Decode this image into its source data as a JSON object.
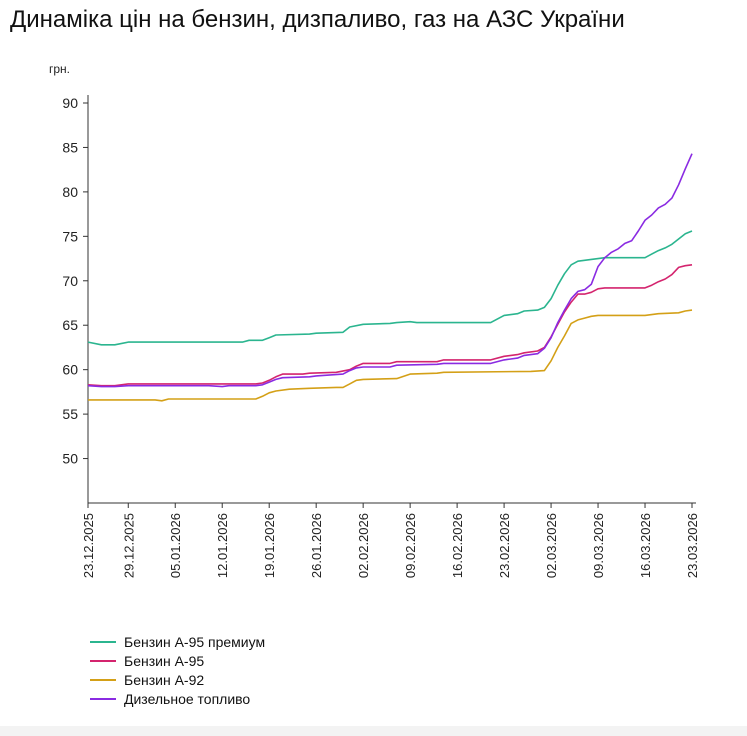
{
  "title": "Динаміка цін на бензин, дизпаливо, газ на АЗС України",
  "chart_data": {
    "type": "line",
    "title": "Динаміка цін на бензин, дизпаливо, газ на АЗС України",
    "ylabel": "грн.",
    "xlabel": "",
    "ylim": [
      45,
      90
    ],
    "y_ticks": [
      50,
      55,
      60,
      65,
      70,
      75,
      80,
      85,
      90
    ],
    "grid": false,
    "legend_position": "bottom-left",
    "x_ticks": [
      "23.12.2025",
      "29.12.2025",
      "05.01.2026",
      "12.01.2026",
      "19.01.2026",
      "26.01.2026",
      "02.02.2026",
      "09.02.2026",
      "16.02.2026",
      "23.02.2026",
      "02.03.2026",
      "09.03.2026",
      "16.03.2026",
      "23.03.2026"
    ],
    "x_start": "2025-12-23",
    "x_end": "2026-03-23",
    "series": [
      {
        "name": "Бензин А-95 премиум",
        "color": "#2bb58f",
        "points": [
          [
            "2025-12-23",
            63.1
          ],
          [
            "2025-12-25",
            62.8
          ],
          [
            "2025-12-27",
            62.8
          ],
          [
            "2025-12-29",
            63.1
          ],
          [
            "2026-01-12",
            63.1
          ],
          [
            "2026-01-15",
            63.1
          ],
          [
            "2026-01-16",
            63.3
          ],
          [
            "2026-01-18",
            63.3
          ],
          [
            "2026-01-19",
            63.6
          ],
          [
            "2026-01-20",
            63.9
          ],
          [
            "2026-01-25",
            64.0
          ],
          [
            "2026-01-26",
            64.1
          ],
          [
            "2026-01-30",
            64.2
          ],
          [
            "2026-01-31",
            64.8
          ],
          [
            "2026-02-02",
            65.1
          ],
          [
            "2026-02-06",
            65.2
          ],
          [
            "2026-02-07",
            65.3
          ],
          [
            "2026-02-09",
            65.4
          ],
          [
            "2026-02-10",
            65.3
          ],
          [
            "2026-02-21",
            65.3
          ],
          [
            "2026-02-23",
            66.1
          ],
          [
            "2026-02-25",
            66.3
          ],
          [
            "2026-02-26",
            66.6
          ],
          [
            "2026-02-28",
            66.7
          ],
          [
            "2026-03-01",
            67.0
          ],
          [
            "2026-03-02",
            68.0
          ],
          [
            "2026-03-03",
            69.5
          ],
          [
            "2026-03-04",
            70.8
          ],
          [
            "2026-03-05",
            71.8
          ],
          [
            "2026-03-06",
            72.2
          ],
          [
            "2026-03-07",
            72.3
          ],
          [
            "2026-03-08",
            72.4
          ],
          [
            "2026-03-10",
            72.6
          ],
          [
            "2026-03-14",
            72.6
          ],
          [
            "2026-03-16",
            72.6
          ],
          [
            "2026-03-17",
            73.0
          ],
          [
            "2026-03-18",
            73.4
          ],
          [
            "2026-03-19",
            73.7
          ],
          [
            "2026-03-20",
            74.1
          ],
          [
            "2026-03-21",
            74.7
          ],
          [
            "2026-03-22",
            75.3
          ],
          [
            "2026-03-23",
            75.6
          ]
        ]
      },
      {
        "name": "Бензин А-95",
        "color": "#d4246e",
        "points": [
          [
            "2025-12-23",
            58.3
          ],
          [
            "2025-12-25",
            58.2
          ],
          [
            "2025-12-27",
            58.2
          ],
          [
            "2025-12-29",
            58.4
          ],
          [
            "2026-01-17",
            58.4
          ],
          [
            "2026-01-18",
            58.5
          ],
          [
            "2026-01-19",
            58.8
          ],
          [
            "2026-01-20",
            59.2
          ],
          [
            "2026-01-21",
            59.5
          ],
          [
            "2026-01-24",
            59.5
          ],
          [
            "2026-01-25",
            59.6
          ],
          [
            "2026-01-29",
            59.7
          ],
          [
            "2026-01-31",
            60.0
          ],
          [
            "2026-02-01",
            60.4
          ],
          [
            "2026-02-02",
            60.7
          ],
          [
            "2026-02-06",
            60.7
          ],
          [
            "2026-02-07",
            60.9
          ],
          [
            "2026-02-13",
            60.9
          ],
          [
            "2026-02-14",
            61.1
          ],
          [
            "2026-02-21",
            61.1
          ],
          [
            "2026-02-23",
            61.5
          ],
          [
            "2026-02-25",
            61.7
          ],
          [
            "2026-02-26",
            61.9
          ],
          [
            "2026-02-28",
            62.1
          ],
          [
            "2026-03-01",
            62.5
          ],
          [
            "2026-03-02",
            63.7
          ],
          [
            "2026-03-03",
            65.1
          ],
          [
            "2026-03-04",
            66.5
          ],
          [
            "2026-03-05",
            67.6
          ],
          [
            "2026-03-06",
            68.5
          ],
          [
            "2026-03-07",
            68.5
          ],
          [
            "2026-03-08",
            68.7
          ],
          [
            "2026-03-09",
            69.1
          ],
          [
            "2026-03-10",
            69.2
          ],
          [
            "2026-03-16",
            69.2
          ],
          [
            "2026-03-17",
            69.5
          ],
          [
            "2026-03-18",
            69.9
          ],
          [
            "2026-03-19",
            70.2
          ],
          [
            "2026-03-20",
            70.7
          ],
          [
            "2026-03-21",
            71.5
          ],
          [
            "2026-03-22",
            71.7
          ],
          [
            "2026-03-23",
            71.8
          ]
        ]
      },
      {
        "name": "Бензин А-92",
        "color": "#d4a017",
        "points": [
          [
            "2025-12-23",
            56.6
          ],
          [
            "2026-01-02",
            56.6
          ],
          [
            "2026-01-03",
            56.5
          ],
          [
            "2026-01-04",
            56.7
          ],
          [
            "2026-01-17",
            56.7
          ],
          [
            "2026-01-18",
            57.0
          ],
          [
            "2026-01-19",
            57.4
          ],
          [
            "2026-01-20",
            57.6
          ],
          [
            "2026-01-22",
            57.8
          ],
          [
            "2026-01-25",
            57.9
          ],
          [
            "2026-01-29",
            58.0
          ],
          [
            "2026-01-30",
            58.0
          ],
          [
            "2026-01-31",
            58.4
          ],
          [
            "2026-02-01",
            58.8
          ],
          [
            "2026-02-02",
            58.9
          ],
          [
            "2026-02-07",
            59.0
          ],
          [
            "2026-02-09",
            59.5
          ],
          [
            "2026-02-13",
            59.6
          ],
          [
            "2026-02-14",
            59.7
          ],
          [
            "2026-02-27",
            59.8
          ],
          [
            "2026-03-01",
            59.9
          ],
          [
            "2026-03-02",
            61.0
          ],
          [
            "2026-03-03",
            62.5
          ],
          [
            "2026-03-04",
            63.8
          ],
          [
            "2026-03-05",
            65.2
          ],
          [
            "2026-03-06",
            65.6
          ],
          [
            "2026-03-07",
            65.8
          ],
          [
            "2026-03-08",
            66.0
          ],
          [
            "2026-03-09",
            66.1
          ],
          [
            "2026-03-16",
            66.1
          ],
          [
            "2026-03-17",
            66.2
          ],
          [
            "2026-03-18",
            66.3
          ],
          [
            "2026-03-21",
            66.4
          ],
          [
            "2026-03-22",
            66.6
          ],
          [
            "2026-03-23",
            66.7
          ]
        ]
      },
      {
        "name": "Дизельное топливо",
        "color": "#8a2be2",
        "points": [
          [
            "2025-12-23",
            58.2
          ],
          [
            "2025-12-25",
            58.1
          ],
          [
            "2025-12-27",
            58.1
          ],
          [
            "2025-12-29",
            58.2
          ],
          [
            "2026-01-10",
            58.2
          ],
          [
            "2026-01-12",
            58.1
          ],
          [
            "2026-01-13",
            58.2
          ],
          [
            "2026-01-17",
            58.2
          ],
          [
            "2026-01-18",
            58.3
          ],
          [
            "2026-01-19",
            58.6
          ],
          [
            "2026-01-20",
            58.9
          ],
          [
            "2026-01-21",
            59.1
          ],
          [
            "2026-01-25",
            59.2
          ],
          [
            "2026-01-26",
            59.3
          ],
          [
            "2026-01-30",
            59.5
          ],
          [
            "2026-01-31",
            59.9
          ],
          [
            "2026-02-01",
            60.2
          ],
          [
            "2026-02-02",
            60.3
          ],
          [
            "2026-02-06",
            60.3
          ],
          [
            "2026-02-07",
            60.5
          ],
          [
            "2026-02-13",
            60.6
          ],
          [
            "2026-02-14",
            60.7
          ],
          [
            "2026-02-21",
            60.7
          ],
          [
            "2026-02-23",
            61.1
          ],
          [
            "2026-02-25",
            61.3
          ],
          [
            "2026-02-26",
            61.6
          ],
          [
            "2026-02-28",
            61.8
          ],
          [
            "2026-03-01",
            62.4
          ],
          [
            "2026-03-02",
            63.6
          ],
          [
            "2026-03-03",
            65.3
          ],
          [
            "2026-03-04",
            66.7
          ],
          [
            "2026-03-05",
            68.0
          ],
          [
            "2026-03-06",
            68.8
          ],
          [
            "2026-03-07",
            69.0
          ],
          [
            "2026-03-08",
            69.6
          ],
          [
            "2026-03-09",
            71.6
          ],
          [
            "2026-03-10",
            72.6
          ],
          [
            "2026-03-11",
            73.2
          ],
          [
            "2026-03-12",
            73.6
          ],
          [
            "2026-03-13",
            74.2
          ],
          [
            "2026-03-14",
            74.5
          ],
          [
            "2026-03-15",
            75.6
          ],
          [
            "2026-03-16",
            76.8
          ],
          [
            "2026-03-17",
            77.4
          ],
          [
            "2026-03-18",
            78.2
          ],
          [
            "2026-03-19",
            78.6
          ],
          [
            "2026-03-20",
            79.3
          ],
          [
            "2026-03-21",
            80.8
          ],
          [
            "2026-03-22",
            82.6
          ],
          [
            "2026-03-23",
            84.3
          ]
        ]
      }
    ]
  }
}
